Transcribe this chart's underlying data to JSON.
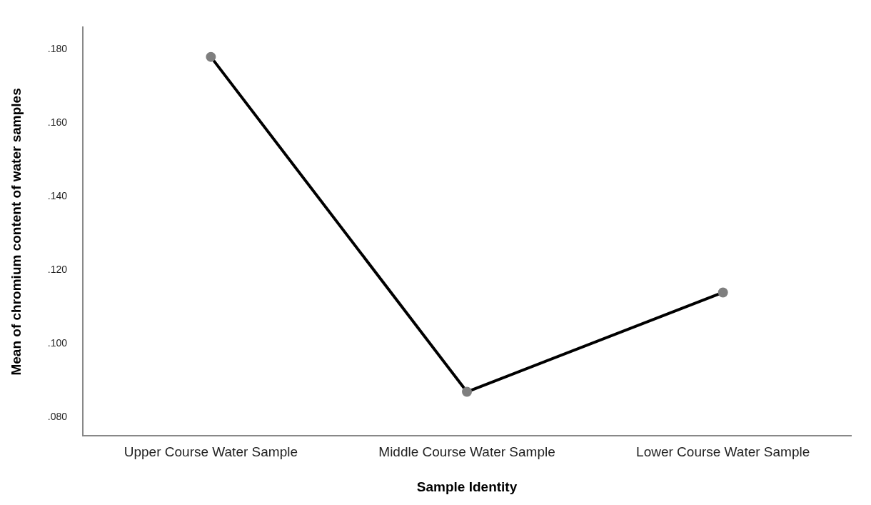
{
  "chart_data": {
    "type": "line",
    "xlabel": "Sample Identity",
    "ylabel": "Mean of chromium content of water samples",
    "categories": [
      "Upper Course Water Sample",
      "Middle Course Water Sample",
      "Lower Course Water Sample"
    ],
    "series": [
      {
        "color": "#000000",
        "values": [
          0.178,
          0.087,
          0.114
        ]
      }
    ],
    "ylim": [
      0.075,
      0.186
    ],
    "yticks": [
      {
        "value": 0.08,
        "label": ".080"
      },
      {
        "value": 0.1,
        "label": ".100"
      },
      {
        "value": 0.12,
        "label": ".120"
      },
      {
        "value": 0.14,
        "label": ".140"
      },
      {
        "value": 0.16,
        "label": ".160"
      },
      {
        "value": 0.18,
        "label": ".180"
      }
    ],
    "grid": false,
    "legend": false,
    "marker": "circle",
    "line_style": "solid"
  }
}
